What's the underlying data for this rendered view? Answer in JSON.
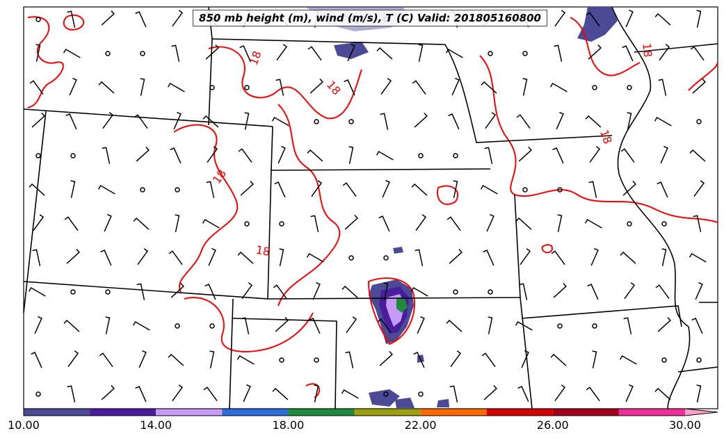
{
  "title": "850 mb height (m), wind (m/s), T (C) Valid: 201805160800",
  "contour_label": "18",
  "colorbar": {
    "ticks": [
      "10.00",
      "14.00",
      "18.00",
      "22.00",
      "26.00",
      "30.00"
    ],
    "tick_values": [
      10,
      14,
      18,
      22,
      26,
      30
    ],
    "range": [
      10,
      31
    ],
    "bins": [
      {
        "from": 10,
        "to": 12,
        "color": "#4b4a94"
      },
      {
        "from": 12,
        "to": 14,
        "color": "#4a1c9e"
      },
      {
        "from": 14,
        "to": 16,
        "color": "#c79af5"
      },
      {
        "from": 16,
        "to": 18,
        "color": "#2e6bdb"
      },
      {
        "from": 18,
        "to": 20,
        "color": "#208a3c"
      },
      {
        "from": 20,
        "to": 22,
        "color": "#9ca111"
      },
      {
        "from": 22,
        "to": 24,
        "color": "#ff6a00"
      },
      {
        "from": 24,
        "to": 26,
        "color": "#d40000"
      },
      {
        "from": 26,
        "to": 28,
        "color": "#a4001f"
      },
      {
        "from": 28,
        "to": 30,
        "color": "#f02e9a"
      },
      {
        "from": 30,
        "to": 31,
        "color": "#ff9ec8"
      }
    ]
  },
  "colors": {
    "isotherm": "#ff0000",
    "border": "#000000",
    "precip_fill": "#4b4a94"
  }
}
